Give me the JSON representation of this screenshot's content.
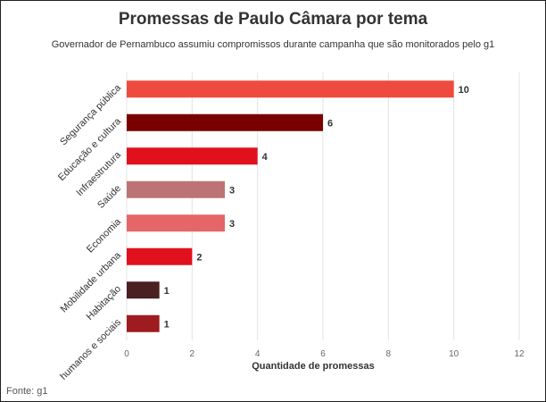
{
  "chart_data": {
    "type": "bar",
    "orientation": "horizontal",
    "title": "Promessas de Paulo Câmara por tema",
    "subtitle": "Governador de Pernambuco assumiu compromissos durante campanha que são monitorados pelo g1",
    "xlabel": "Quantidade de promessas",
    "ylabel": "",
    "xlim": [
      0,
      12
    ],
    "xticks": [
      0,
      2,
      4,
      6,
      8,
      10,
      12
    ],
    "grid": true,
    "legend": "none",
    "categories": [
      "Segurança pública",
      "Educação e cultura",
      "Infraestrutura",
      "Saúde",
      "Economia",
      "Mobilidade urbana",
      "Habitação",
      "humanos e sociais"
    ],
    "values": [
      10,
      6,
      4,
      3,
      3,
      2,
      1,
      1
    ],
    "colors": [
      "#ee4b3e",
      "#7a0000",
      "#e0111d",
      "#bd7373",
      "#e56668",
      "#e0111d",
      "#4a2020",
      "#9e1b20"
    ],
    "source": "Fonte: g1"
  }
}
